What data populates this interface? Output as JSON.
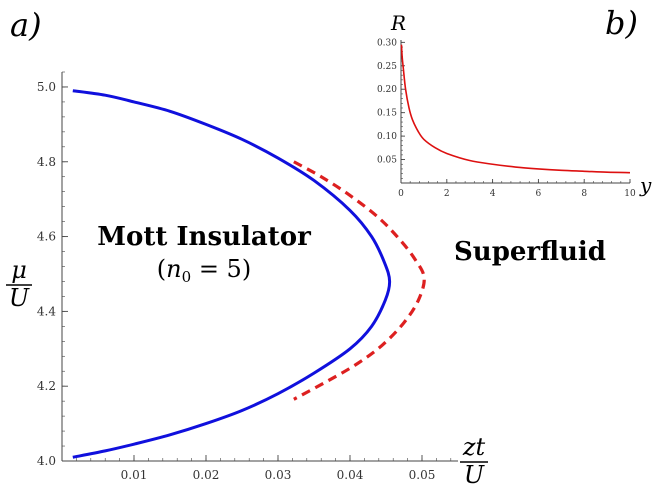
{
  "panels": {
    "a": "a)",
    "b": "b)"
  },
  "region_labels": {
    "mott": "Mott Insulator",
    "mott_sub_prefix": "(",
    "mott_n": "n",
    "mott_n_sub": "0",
    "mott_sub_suffix": " = 5)",
    "superfluid": "Superfluid"
  },
  "colors": {
    "solid": "#1010dd",
    "dashed": "#dd2020",
    "inset": "#dd1010",
    "axis": "#444444"
  },
  "chart_data": [
    {
      "type": "line",
      "panel": "a",
      "xlabel_num": "zt",
      "xlabel_den": "U",
      "ylabel_num": "μ",
      "ylabel_den": "U",
      "xlim": [
        0,
        0.055
      ],
      "ylim": [
        4.0,
        5.04
      ],
      "xticks": [
        "0.01",
        "0.02",
        "0.03",
        "0.04",
        "0.05"
      ],
      "xtick_values": [
        0.01,
        0.02,
        0.03,
        0.04,
        0.05
      ],
      "yticks": [
        "4.0",
        "4.2",
        "4.4",
        "4.6",
        "4.8",
        "5.0"
      ],
      "ytick_values": [
        4.0,
        4.2,
        4.4,
        4.6,
        4.8,
        5.0
      ],
      "series": [
        {
          "style": "solid",
          "points": [
            [
              0.0015,
              4.99
            ],
            [
              0.006,
              4.978
            ],
            [
              0.01,
              4.96
            ],
            [
              0.015,
              4.935
            ],
            [
              0.02,
              4.9
            ],
            [
              0.025,
              4.86
            ],
            [
              0.03,
              4.81
            ],
            [
              0.035,
              4.75
            ],
            [
              0.04,
              4.67
            ],
            [
              0.043,
              4.6
            ],
            [
              0.0448,
              4.53
            ],
            [
              0.0455,
              4.48
            ],
            [
              0.0449,
              4.43
            ],
            [
              0.043,
              4.36
            ],
            [
              0.04,
              4.3
            ],
            [
              0.035,
              4.235
            ],
            [
              0.03,
              4.18
            ],
            [
              0.025,
              4.135
            ],
            [
              0.02,
              4.1
            ],
            [
              0.015,
              4.07
            ],
            [
              0.01,
              4.045
            ],
            [
              0.006,
              4.027
            ],
            [
              0.0015,
              4.01
            ]
          ]
        },
        {
          "style": "dashed",
          "points": [
            [
              0.0322,
              4.8
            ],
            [
              0.036,
              4.76
            ],
            [
              0.04,
              4.71
            ],
            [
              0.044,
              4.65
            ],
            [
              0.047,
              4.59
            ],
            [
              0.049,
              4.54
            ],
            [
              0.0503,
              4.49
            ],
            [
              0.0495,
              4.43
            ],
            [
              0.0475,
              4.37
            ],
            [
              0.0445,
              4.31
            ],
            [
              0.041,
              4.26
            ],
            [
              0.037,
              4.215
            ],
            [
              0.0322,
              4.165
            ]
          ]
        }
      ]
    },
    {
      "type": "line",
      "panel": "b",
      "xlabel": "y",
      "ylabel": "R",
      "xlim": [
        0,
        10
      ],
      "ylim": [
        0,
        0.305
      ],
      "xticks": [
        "0",
        "2",
        "4",
        "6",
        "8",
        "10"
      ],
      "xtick_values": [
        0,
        2,
        4,
        6,
        8,
        10
      ],
      "yticks": [
        "0.05",
        "0.10",
        "0.15",
        "0.20",
        "0.25",
        "0.30"
      ],
      "ytick_values": [
        0.05,
        0.1,
        0.15,
        0.2,
        0.25,
        0.3
      ],
      "series": [
        {
          "style": "solid",
          "points": [
            [
              0.02,
              0.295
            ],
            [
              0.05,
              0.27
            ],
            [
              0.1,
              0.245
            ],
            [
              0.2,
              0.2
            ],
            [
              0.35,
              0.16
            ],
            [
              0.5,
              0.135
            ],
            [
              0.75,
              0.11
            ],
            [
              1.0,
              0.093
            ],
            [
              1.5,
              0.075
            ],
            [
              2.0,
              0.063
            ],
            [
              3.0,
              0.048
            ],
            [
              4.0,
              0.04
            ],
            [
              5.0,
              0.034
            ],
            [
              6.0,
              0.03
            ],
            [
              7.0,
              0.027
            ],
            [
              8.0,
              0.025
            ],
            [
              9.0,
              0.023
            ],
            [
              10.0,
              0.022
            ]
          ]
        }
      ]
    }
  ]
}
